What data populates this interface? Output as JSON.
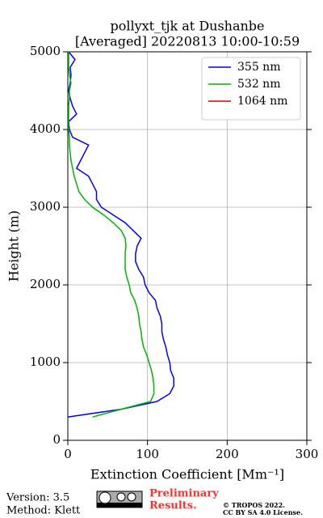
{
  "chart_data": {
    "type": "line",
    "title": [
      "pollyxt_tjk at Dushanbe",
      "[Averaged] 20220813 10:00-10:59"
    ],
    "xlabel": "Extinction Coefficient [Mm⁻¹]",
    "ylabel": "Height (m)",
    "y": [
      300,
      400,
      500,
      600,
      700,
      800,
      900,
      1000,
      1100,
      1200,
      1300,
      1400,
      1500,
      1600,
      1700,
      1800,
      1900,
      2000,
      2100,
      2200,
      2300,
      2400,
      2500,
      2600,
      2700,
      2800,
      2900,
      3000,
      3100,
      3200,
      3300,
      3400,
      3500,
      3600,
      3700,
      3800,
      3900,
      4000,
      4100,
      4200,
      4300,
      4400,
      4500,
      4600,
      4700,
      4800,
      4900,
      5000
    ],
    "series": [
      {
        "name": "355 nm",
        "color": "#0000ff",
        "values": [
          0,
          67,
          112,
          128,
          133,
          133,
          129,
          128,
          125,
          123,
          120,
          118,
          118,
          116,
          112,
          110,
          102,
          97,
          95,
          89,
          85,
          85,
          87,
          92,
          82,
          72,
          57,
          42,
          36,
          36,
          31,
          26,
          11,
          16,
          21,
          26,
          6,
          2,
          1,
          11,
          6,
          3,
          1,
          3,
          4,
          3,
          9,
          1
        ]
      },
      {
        "name": "532 nm",
        "color": "#00b400",
        "values": [
          31,
          67,
          104,
          108,
          108,
          107,
          105,
          102,
          99,
          95,
          93,
          92,
          90,
          89,
          87,
          84,
          79,
          77,
          74,
          72,
          72,
          72,
          73,
          72,
          67,
          57,
          45,
          31,
          21,
          14,
          11,
          8,
          6,
          4,
          3,
          2,
          2,
          1,
          1,
          1,
          1,
          2,
          2,
          4,
          2,
          1,
          1,
          1
        ]
      },
      {
        "name": "1064 nm",
        "color": "#e00000",
        "values": [
          null,
          null,
          null,
          null,
          null,
          null,
          null,
          null,
          null,
          null,
          null,
          null,
          null,
          null,
          null,
          null,
          null,
          null,
          null,
          null,
          null,
          null,
          null,
          null,
          null,
          null,
          null,
          null,
          null,
          null,
          null,
          null,
          null,
          null,
          null,
          null,
          null,
          null,
          null,
          null,
          null,
          null,
          null,
          null,
          null,
          null,
          null,
          null
        ]
      }
    ],
    "xlim": [
      0,
      300
    ],
    "xticks": [
      0,
      100,
      200,
      300
    ],
    "ylim": [
      0,
      5000
    ],
    "yticks": [
      0,
      1000,
      2000,
      3000,
      4000,
      5000
    ],
    "grid": true,
    "legend": "upper right"
  },
  "footer": {
    "version": "Version: 3.5",
    "method": "Method: Klett",
    "preliminary": [
      "Preliminary",
      "Results."
    ],
    "copyright": [
      "© TROPOS 2022.",
      "CC BY SA 4.0 License."
    ]
  }
}
